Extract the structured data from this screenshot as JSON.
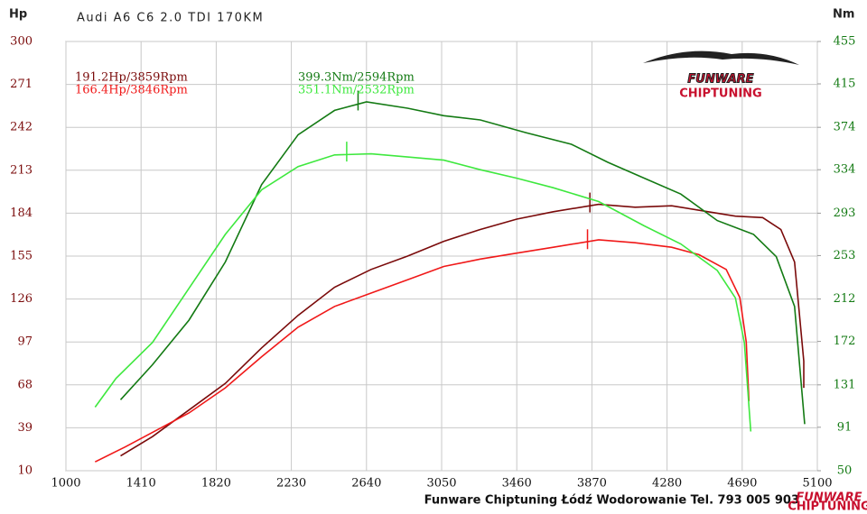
{
  "chart_data": {
    "type": "line",
    "title": "Audi A6 C6 2.0 TDI 170KM",
    "y_label": "Hp",
    "y2_label": "Nm",
    "xlim": [
      1000,
      5100
    ],
    "xticks": [
      1000,
      1410,
      1820,
      2230,
      2640,
      3050,
      3460,
      3870,
      4280,
      4690,
      5100
    ],
    "ylim": [
      10,
      300
    ],
    "yticks": [
      10,
      39,
      68,
      97,
      126,
      155,
      184,
      213,
      242,
      271,
      300
    ],
    "y2lim": [
      50,
      455
    ],
    "y2ticks": [
      50,
      91,
      131,
      172,
      212,
      253,
      293,
      334,
      374,
      415,
      455
    ],
    "grid": true,
    "series": [
      {
        "name": "191.2Hp/3859Rpm",
        "color": "#7a0a0a",
        "peak": [
          3859,
          191.2
        ],
        "x": [
          1298,
          1472,
          1671,
          1870,
          2068,
          2267,
          2466,
          2665,
          2864,
          3062,
          3261,
          3460,
          3659,
          3907,
          4106,
          4305,
          4504,
          4653,
          4802,
          4901,
          4976,
          5026,
          5026
        ],
        "values": [
          20,
          33,
          51,
          69,
          93,
          115,
          134,
          146,
          155,
          165,
          173,
          180,
          185,
          190,
          188,
          189,
          185,
          182,
          181,
          173,
          151,
          84,
          66
        ]
      },
      {
        "name": "166.4Hp/3846Rpm",
        "color": "#f01818",
        "peak": [
          3846,
          166.4
        ],
        "x": [
          1159,
          1323,
          1671,
          1870,
          2068,
          2267,
          2466,
          2665,
          2864,
          3062,
          3261,
          3460,
          3659,
          3907,
          4106,
          4305,
          4454,
          4603,
          4677,
          4712,
          4727
        ],
        "values": [
          16,
          26,
          49,
          66,
          87,
          107,
          121,
          130,
          139,
          148,
          153,
          157,
          161,
          166,
          164,
          161,
          156,
          146,
          127,
          97,
          57
        ]
      },
      {
        "name": "399.3Nm/2594Rpm",
        "color": "#137a13",
        "axis": "y2",
        "peak": [
          2594,
          399.3
        ],
        "x": [
          1298,
          1472,
          1671,
          1870,
          2068,
          2267,
          2466,
          2640,
          2864,
          3062,
          3261,
          3510,
          3758,
          3957,
          4156,
          4355,
          4554,
          4752,
          4876,
          4976,
          5031
        ],
        "values": [
          117,
          150,
          192,
          247,
          320,
          367,
          390,
          398,
          392,
          385,
          381,
          369,
          358,
          341,
          326,
          311,
          286,
          273,
          252,
          205,
          94
        ]
      },
      {
        "name": "351.1Nm/2532Rpm",
        "color": "#3ee83e",
        "axis": "y2",
        "peak": [
          2532,
          351.1
        ],
        "x": [
          1159,
          1273,
          1472,
          1671,
          1870,
          2068,
          2267,
          2466,
          2665,
          2864,
          3062,
          3261,
          3460,
          3659,
          3907,
          4156,
          4355,
          4554,
          4653,
          4702,
          4737
        ],
        "values": [
          110,
          137,
          171,
          222,
          273,
          315,
          337,
          348,
          349,
          346,
          343,
          334,
          326,
          317,
          304,
          281,
          264,
          239,
          213,
          171,
          87
        ]
      }
    ],
    "logo": {
      "name": "FUNWARE",
      "tagline": "CHIPTUNING"
    },
    "footer": "Funware Chiptuning Łódź Wodorowanie Tel. 793 005 903",
    "footer_logo": {
      "name": "FUNWARE",
      "tagline": "CHIPTUNING"
    }
  }
}
